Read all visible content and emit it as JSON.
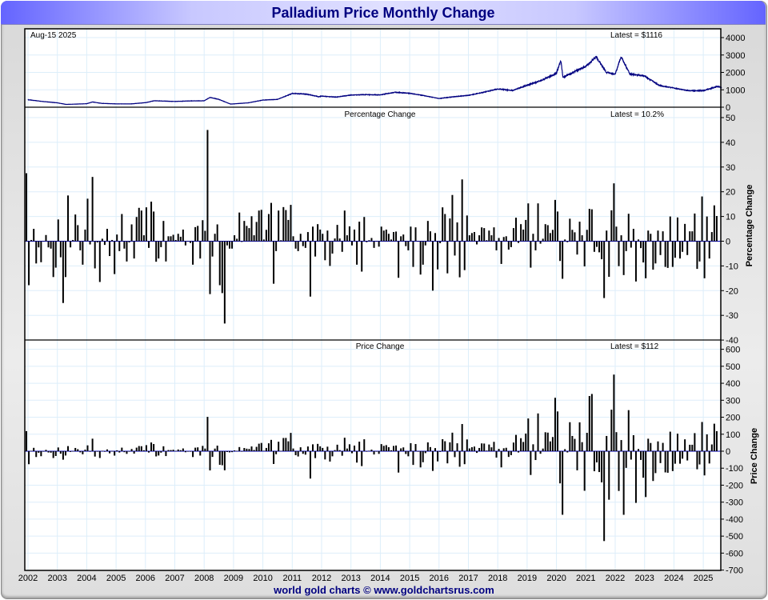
{
  "title": "Palladium Price Monthly Change",
  "footer": "world gold charts © www.goldchartsrus.com",
  "colors": {
    "line": "#000080",
    "bar": "#000000",
    "zero": "#0000c0",
    "grid": "#ddeefa",
    "title": "#000080"
  },
  "chart_data": [
    {
      "type": "line",
      "panel": "price",
      "date_label": "Aug-15  2025",
      "latest_label": "Latest = $1116",
      "y_ticks": [
        0,
        1000,
        2000,
        3000,
        4000
      ],
      "ylim": [
        0,
        4000
      ],
      "x_ticks": [
        "2002",
        "2003",
        "2004",
        "2005",
        "2006",
        "2007",
        "2008",
        "2009",
        "2010",
        "2011",
        "2012",
        "2013",
        "2014",
        "2015",
        "2016",
        "2017",
        "2018",
        "2019",
        "2020",
        "2021",
        "2022",
        "2023",
        "2024",
        "2025"
      ],
      "series_anchors": {
        "t": [
          2002.0,
          2002.5,
          2003.0,
          2003.3,
          2004.0,
          2004.2,
          2004.5,
          2005.0,
          2005.5,
          2006.0,
          2006.3,
          2007.0,
          2007.5,
          2008.0,
          2008.2,
          2008.5,
          2008.9,
          2009.0,
          2009.5,
          2010.0,
          2010.5,
          2011.0,
          2011.5,
          2011.9,
          2012.0,
          2012.5,
          2013.0,
          2013.5,
          2014.0,
          2014.5,
          2015.0,
          2015.5,
          2016.0,
          2016.5,
          2017.0,
          2017.5,
          2018.0,
          2018.5,
          2019.0,
          2019.5,
          2020.0,
          2020.15,
          2020.22,
          2020.5,
          2021.0,
          2021.35,
          2021.7,
          2022.0,
          2022.2,
          2022.5,
          2023.0,
          2023.5,
          2024.0,
          2024.5,
          2025.0,
          2025.5,
          2025.62
        ],
        "price": [
          430,
          330,
          250,
          160,
          200,
          300,
          220,
          190,
          190,
          260,
          370,
          330,
          360,
          370,
          560,
          450,
          180,
          190,
          250,
          410,
          450,
          790,
          750,
          600,
          640,
          580,
          700,
          720,
          710,
          860,
          800,
          660,
          500,
          600,
          680,
          850,
          1050,
          960,
          1260,
          1550,
          1950,
          2700,
          1700,
          1950,
          2350,
          2900,
          2000,
          1900,
          2900,
          1900,
          1800,
          1250,
          1100,
          950,
          950,
          1200,
          1116
        ]
      }
    },
    {
      "type": "bar",
      "panel": "percentage",
      "title": "Percentage Change",
      "latest_label": "Latest = 10.2%",
      "ylabel": "Percentage Change",
      "y_ticks": [
        50,
        40,
        30,
        20,
        10,
        0,
        -10,
        -20,
        -30,
        -40
      ],
      "ylim": [
        -40,
        50
      ],
      "start": "2002-01",
      "values": [
        27.5,
        -17.8,
        0.5,
        5,
        -9,
        -2.5,
        -8.5,
        0,
        2.5,
        -2.5,
        -3,
        -14.5,
        -10.7,
        8.8,
        -6.5,
        -25,
        -14.5,
        18.5,
        -2.5,
        0.5,
        10.8,
        6.5,
        -3.7,
        -9.5,
        4.7,
        17.2,
        -1.3,
        26,
        -11,
        -0.5,
        -16.5,
        1,
        -1.5,
        5,
        -6,
        0.5,
        -13.3,
        2.7,
        -4,
        11,
        -3,
        -8.2,
        -0.5,
        6.8,
        -7,
        9.8,
        13.5,
        12.4,
        2.4,
        13.7,
        -2.7,
        16,
        12,
        -8.3,
        -7,
        -2.4,
        8.2,
        -8.2,
        2,
        2,
        2.6,
        0.5,
        3,
        1.8,
        4.7,
        -1.7,
        0,
        -0.7,
        -9.5,
        5.7,
        6.2,
        -7,
        8.5,
        4.2,
        45,
        -21.4,
        -6.2,
        3,
        6.8,
        -17.8,
        -21,
        -33.3,
        -1.7,
        -3,
        -3,
        2.4,
        1,
        11.6,
        -0.3,
        8.2,
        6.2,
        5.3,
        10.1,
        2.4,
        7.8,
        12.4,
        12.7,
        0.7,
        4.6,
        11,
        15.5,
        -17.2,
        -4,
        12.4,
        0.4,
        13.8,
        12.6,
        8.6,
        14.7,
        2,
        -3,
        -4,
        3,
        -2,
        -2.7,
        3.7,
        -22.4,
        5.9,
        -6.2,
        6.9,
        4.7,
        3,
        -7.7,
        4.3,
        -10,
        -5,
        1.1,
        6.6,
        1.1,
        -4.3,
        12.4,
        2.4,
        6,
        -1.7,
        4.7,
        -9.5,
        7.9,
        -12.3,
        9.8,
        -0.4,
        0.4,
        1.3,
        -2.7,
        0,
        -2.2,
        5.9,
        4.3,
        4.7,
        3,
        0.7,
        3.7,
        3.9,
        -14.8,
        2,
        2.7,
        -2,
        -3.7,
        5.9,
        -10.4,
        5.6,
        -0.2,
        -13.5,
        -9.5,
        -1.7,
        8.2,
        4,
        -20,
        3.3,
        -11.4,
        -0.8,
        13.7,
        11,
        -13,
        9.2,
        18.7,
        -5.8,
        7.6,
        -14.6,
        25,
        -11.7,
        10.4,
        2.4,
        3.3,
        3.7,
        -1.3,
        2.4,
        5.6,
        5.3,
        0.4,
        4.3,
        2.4,
        5.6,
        -3.7,
        1.3,
        -9.2,
        1.7,
        2,
        -3.4,
        -2.4,
        5.3,
        9.5,
        -0.7,
        6.9,
        4.7,
        8.6,
        15.3,
        -10.7,
        3,
        -3.7,
        15.3,
        -1,
        1,
        6.9,
        6.5,
        3.3,
        4.6,
        16.7,
        12,
        -8,
        -15.2,
        0.7,
        -0.4,
        9.1,
        4.6,
        3.6,
        -5.4,
        7.9,
        2.4,
        -10.2,
        4.6,
        13.1,
        12.9,
        -4.3,
        -2.3,
        -4.5,
        -7.3,
        -23,
        4.3,
        -14.4,
        12.5,
        23.4,
        5.9,
        -10.1,
        2.4,
        -13.7,
        -4,
        11.1,
        -2.6,
        5,
        -16.3,
        0.7,
        -2.8,
        -8.6,
        -15,
        4.3,
        3,
        -11.5,
        -9,
        4.3,
        -5.6,
        4,
        -10.4,
        -10.8,
        10,
        -10.4,
        -6.7,
        9.6,
        -7,
        -4.3,
        7,
        -5.6,
        4,
        4,
        11.2,
        -11.2,
        -8.2,
        18.1,
        -15,
        10,
        -7,
        3.7,
        14.5,
        10.2
      ]
    },
    {
      "type": "bar",
      "panel": "price_change",
      "title": "Price Change",
      "latest_label": "Latest = $112",
      "ylabel": "Price Change",
      "y_ticks": [
        600,
        500,
        400,
        300,
        200,
        100,
        0,
        -100,
        -200,
        -300,
        -400,
        -500,
        -600,
        -700
      ],
      "ylim": [
        -700,
        600
      ],
      "derived_from": "percentage values × prior month price"
    }
  ]
}
